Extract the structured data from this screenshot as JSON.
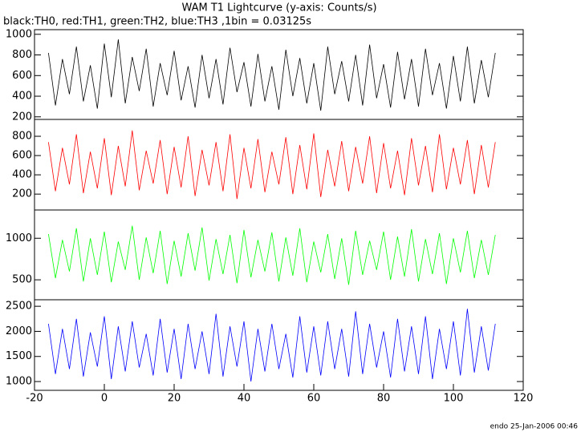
{
  "chart_data": [
    {
      "type": "line",
      "title": "WAM T1 Lightcurve (y-axis: Counts/s)",
      "subtitle": "black:TH0, red:TH1, green:TH2, blue:TH3 ,1bin = 0.03125s",
      "x": [
        -16,
        -14,
        -12,
        -10,
        -8,
        -6,
        -4,
        -2,
        0,
        2,
        4,
        6,
        8,
        10,
        12,
        14,
        16,
        18,
        20,
        22,
        24,
        26,
        28,
        30,
        32,
        34,
        36,
        38,
        40,
        42,
        44,
        46,
        48,
        50,
        52,
        54,
        56,
        58,
        60,
        62,
        64,
        66,
        68,
        70,
        72,
        74,
        76,
        78,
        80,
        82,
        84,
        86,
        88,
        90,
        92,
        94,
        96,
        98,
        100,
        102,
        104,
        106,
        108,
        110,
        112
      ],
      "series": [
        {
          "color": "#000000",
          "values": [
            820,
            310,
            760,
            420,
            880,
            350,
            700,
            280,
            910,
            390,
            950,
            330,
            780,
            450,
            860,
            300,
            720,
            410,
            840,
            360,
            690,
            290,
            800,
            380,
            760,
            320,
            870,
            440,
            730,
            300,
            810,
            350,
            690,
            270,
            850,
            400,
            770,
            330,
            720,
            260,
            880,
            420,
            740,
            350,
            800,
            310,
            900,
            380,
            710,
            290,
            830,
            370,
            760,
            300,
            860,
            410,
            720,
            280,
            790,
            350,
            880,
            330,
            750,
            390,
            820
          ]
        }
      ],
      "xlim": [
        -20,
        120
      ],
      "ylim": [
        175,
        1045
      ],
      "yticks": [
        200,
        400,
        600,
        800,
        1000
      ]
    },
    {
      "type": "line",
      "x": [
        -16,
        -14,
        -12,
        -10,
        -8,
        -6,
        -4,
        -2,
        0,
        2,
        4,
        6,
        8,
        10,
        12,
        14,
        16,
        18,
        20,
        22,
        24,
        26,
        28,
        30,
        32,
        34,
        36,
        38,
        40,
        42,
        44,
        46,
        48,
        50,
        52,
        54,
        56,
        58,
        60,
        62,
        64,
        66,
        68,
        70,
        72,
        74,
        76,
        78,
        80,
        82,
        84,
        86,
        88,
        90,
        92,
        94,
        96,
        98,
        100,
        102,
        104,
        106,
        108,
        110,
        112
      ],
      "series": [
        {
          "color": "#ff0000",
          "values": [
            740,
            230,
            680,
            300,
            820,
            210,
            640,
            260,
            780,
            190,
            700,
            280,
            860,
            240,
            650,
            310,
            760,
            200,
            690,
            270,
            800,
            180,
            660,
            290,
            740,
            230,
            820,
            150,
            680,
            260,
            770,
            220,
            640,
            300,
            790,
            200,
            710,
            250,
            830,
            170,
            660,
            280,
            750,
            230,
            690,
            310,
            800,
            210,
            730,
            260,
            650,
            190,
            780,
            290,
            700,
            220,
            820,
            250,
            680,
            300,
            760,
            200,
            710,
            270,
            740
          ]
        }
      ],
      "xlim": [
        -20,
        120
      ],
      "ylim": [
        35,
        975
      ],
      "yticks": [
        200,
        400,
        600,
        800
      ]
    },
    {
      "type": "line",
      "x": [
        -16,
        -14,
        -12,
        -10,
        -8,
        -6,
        -4,
        -2,
        0,
        2,
        4,
        6,
        8,
        10,
        12,
        14,
        16,
        18,
        20,
        22,
        24,
        26,
        28,
        30,
        32,
        34,
        36,
        38,
        40,
        42,
        44,
        46,
        48,
        50,
        52,
        54,
        56,
        58,
        60,
        62,
        64,
        66,
        68,
        70,
        72,
        74,
        76,
        78,
        80,
        82,
        84,
        86,
        88,
        90,
        92,
        94,
        96,
        98,
        100,
        102,
        104,
        106,
        108,
        110,
        112
      ],
      "series": [
        {
          "color": "#00ff00",
          "values": [
            1050,
            520,
            980,
            600,
            1120,
            480,
            1000,
            560,
            1080,
            470,
            960,
            620,
            1150,
            500,
            1010,
            580,
            1090,
            450,
            970,
            540,
            1060,
            610,
            1130,
            490,
            990,
            570,
            1040,
            460,
            1100,
            530,
            980,
            600,
            1070,
            480,
            1010,
            550,
            1120,
            470,
            960,
            590,
            1050,
            510,
            1000,
            440,
            1090,
            560,
            970,
            620,
            1080,
            500,
            1020,
            540,
            1110,
            480,
            990,
            570,
            1060,
            450,
            1000,
            590,
            1090,
            520,
            980,
            560,
            1040
          ]
        }
      ],
      "xlim": [
        -20,
        120
      ],
      "ylim": [
        260,
        1340
      ],
      "yticks": [
        500,
        1000
      ]
    },
    {
      "type": "line",
      "x": [
        -16,
        -14,
        -12,
        -10,
        -8,
        -6,
        -4,
        -2,
        0,
        2,
        4,
        6,
        8,
        10,
        12,
        14,
        16,
        18,
        20,
        22,
        24,
        26,
        28,
        30,
        32,
        34,
        36,
        38,
        40,
        42,
        44,
        46,
        48,
        50,
        52,
        54,
        56,
        58,
        60,
        62,
        64,
        66,
        68,
        70,
        72,
        74,
        76,
        78,
        80,
        82,
        84,
        86,
        88,
        90,
        92,
        94,
        96,
        98,
        100,
        102,
        104,
        106,
        108,
        110,
        112
      ],
      "series": [
        {
          "color": "#0000ff",
          "values": [
            2150,
            1150,
            2050,
            1250,
            2250,
            1100,
            1980,
            1300,
            2300,
            1050,
            2100,
            1200,
            2200,
            1280,
            1950,
            1120,
            2250,
            1180,
            2050,
            1050,
            2150,
            1250,
            2000,
            1150,
            2350,
            1100,
            2100,
            1300,
            2200,
            1000,
            2050,
            1200,
            2150,
            1250,
            1950,
            1080,
            2300,
            1180,
            2100,
            1120,
            2200,
            1250,
            2050,
            1100,
            2400,
            1150,
            2150,
            1280,
            2000,
            1080,
            2250,
            1200,
            2100,
            1150,
            2300,
            1050,
            2050,
            1250,
            2200,
            1120,
            2450,
            1180,
            2100,
            1220,
            2150
          ]
        }
      ],
      "xlim": [
        -20,
        120
      ],
      "ylim": [
        825,
        2630
      ],
      "yticks": [
        1000,
        1500,
        2000,
        2500
      ],
      "xticks": [
        -20,
        0,
        20,
        40,
        60,
        80,
        100,
        120
      ]
    }
  ],
  "footer": "endo 25-Jan-2006 00:46"
}
